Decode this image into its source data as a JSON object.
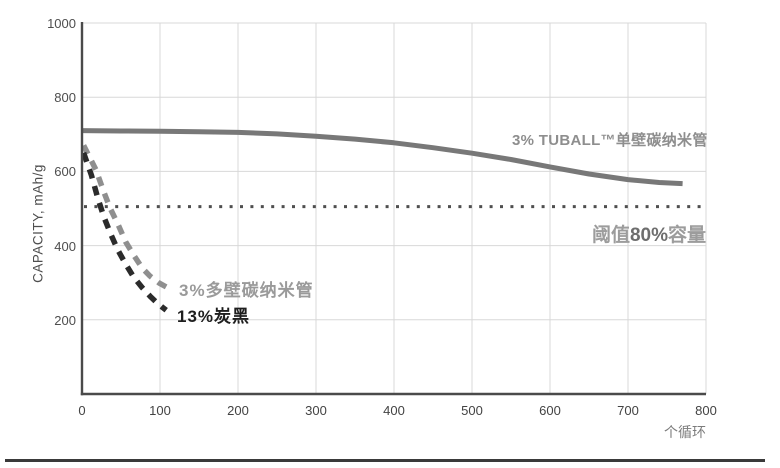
{
  "chart_data": {
    "type": "line",
    "title": "",
    "xlabel": "个循环",
    "ylabel": "CAPACITY, mAh/g",
    "xlim": [
      0,
      800
    ],
    "ylim": [
      0,
      1000
    ],
    "x_ticks": [
      0,
      100,
      200,
      300,
      400,
      500,
      600,
      700,
      800
    ],
    "y_ticks": [
      200,
      400,
      600,
      800,
      1000
    ],
    "grid": true,
    "legend_position": "inline-annotations",
    "series": [
      {
        "name": "3% TUBALL™单壁碳纳米管",
        "style": "solid",
        "color": "#787878",
        "points": [
          [
            0,
            710
          ],
          [
            50,
            709
          ],
          [
            100,
            708
          ],
          [
            150,
            707
          ],
          [
            200,
            705
          ],
          [
            250,
            701
          ],
          [
            300,
            695
          ],
          [
            350,
            687
          ],
          [
            400,
            677
          ],
          [
            450,
            664
          ],
          [
            500,
            649
          ],
          [
            550,
            632
          ],
          [
            600,
            612
          ],
          [
            650,
            593
          ],
          [
            700,
            578
          ],
          [
            740,
            570
          ],
          [
            770,
            567
          ]
        ]
      },
      {
        "name": "3%多壁碳纳米管",
        "style": "dashed",
        "color": "#8f8f8f",
        "points": [
          [
            2,
            670
          ],
          [
            18,
            604
          ],
          [
            27,
            550
          ],
          [
            36,
            501
          ],
          [
            46,
            458
          ],
          [
            56,
            410
          ],
          [
            67,
            372
          ],
          [
            77,
            340
          ],
          [
            87,
            318
          ],
          [
            99,
            299
          ],
          [
            113,
            283
          ]
        ]
      },
      {
        "name": "13%炭黑",
        "style": "dashed",
        "color": "#2b2b2b",
        "points": [
          [
            2,
            650
          ],
          [
            12,
            590
          ],
          [
            20,
            530
          ],
          [
            28,
            478
          ],
          [
            37,
            430
          ],
          [
            46,
            388
          ],
          [
            56,
            350
          ],
          [
            66,
            316
          ],
          [
            77,
            287
          ],
          [
            88,
            262
          ],
          [
            96,
            246
          ],
          [
            103,
            234
          ],
          [
            108,
            226
          ]
        ]
      }
    ],
    "threshold": {
      "value": 505,
      "style": "dotted",
      "color": "#4f4f4f",
      "label_prefix": "阈值",
      "label_value": "80%",
      "label_suffix": "容量"
    }
  },
  "axes": {
    "y_title": "CAPACITY, mAh/g",
    "x_unit": "个循环"
  },
  "style": {
    "grid_color": "#d8d8d8",
    "axis_color": "#4a4a4a"
  }
}
